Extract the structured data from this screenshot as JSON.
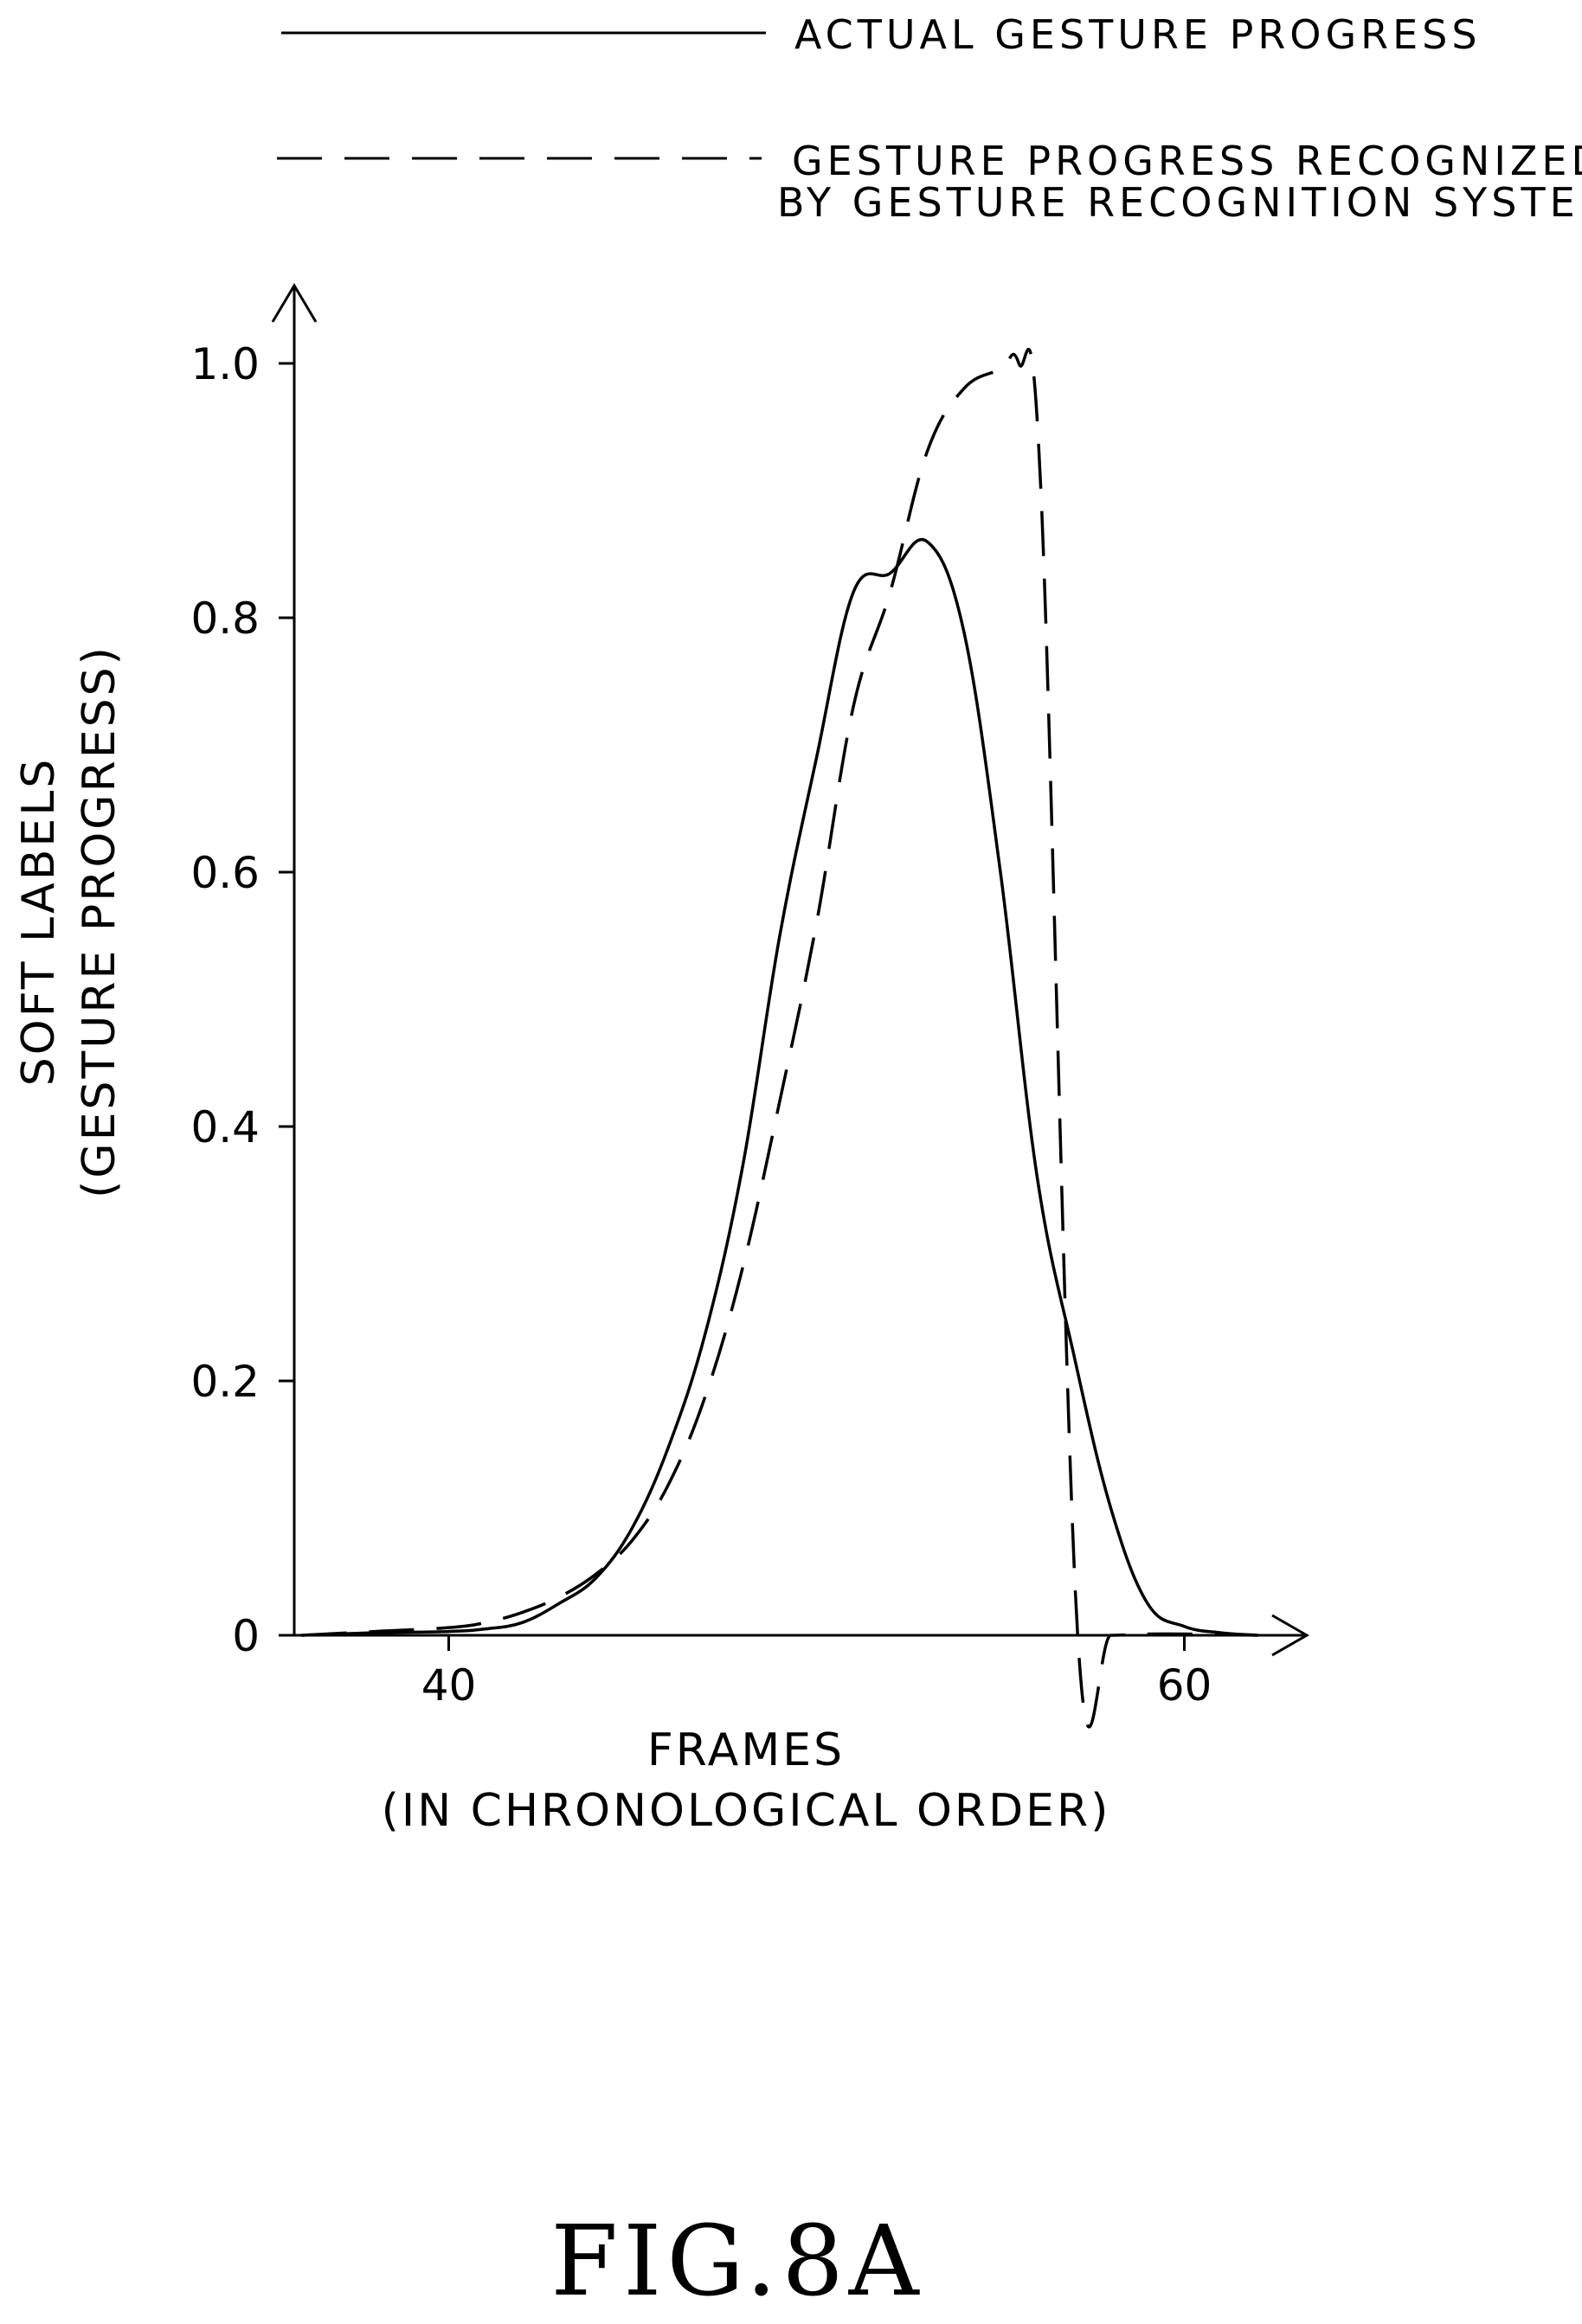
{
  "chart_data": {
    "type": "line",
    "caption": "FIG.8A",
    "xlabel": [
      "FRAMES",
      "(IN CHRONOLOGICAL ORDER)"
    ],
    "ylabel": [
      "SOFT LABELS",
      "(GESTURE PROGRESS)"
    ],
    "xlim": [
      35.8,
      63.5
    ],
    "ylim": [
      0,
      1.05
    ],
    "x_ticks": [
      {
        "value": 40,
        "label": "40"
      },
      {
        "value": 60,
        "label": "60"
      }
    ],
    "y_ticks": [
      {
        "value": 0,
        "label": "0"
      },
      {
        "value": 0.2,
        "label": "0.2"
      },
      {
        "value": 0.4,
        "label": "0.4"
      },
      {
        "value": 0.6,
        "label": "0.6"
      },
      {
        "value": 0.8,
        "label": "0.8"
      },
      {
        "value": 1.0,
        "label": "1.0"
      }
    ],
    "legend": {
      "placement": "top",
      "entries": [
        {
          "series": 0,
          "label_lines": [
            "ACTUAL GESTURE PROGRESS"
          ]
        },
        {
          "series": 1,
          "label_lines": [
            "GESTURE PROGRESS RECOGNIZED",
            "BY GESTURE RECOGNITION SYSTEM"
          ]
        }
      ]
    },
    "series": [
      {
        "name": "ACTUAL GESTURE PROGRESS",
        "style": "solid",
        "color": "#000000",
        "x": [
          36,
          38,
          40,
          41,
          42,
          43,
          44,
          45,
          46,
          47,
          48,
          49,
          50,
          51,
          52,
          53,
          54,
          55,
          56,
          57,
          58,
          59,
          60,
          61,
          62
        ],
        "y": [
          0,
          0.002,
          0.003,
          0.005,
          0.01,
          0.025,
          0.045,
          0.085,
          0.15,
          0.24,
          0.37,
          0.55,
          0.69,
          0.82,
          0.835,
          0.86,
          0.79,
          0.6,
          0.36,
          0.22,
          0.1,
          0.025,
          0.007,
          0.002,
          0
        ]
      },
      {
        "name": "GESTURE PROGRESS RECOGNIZED BY GESTURE RECOGNITION SYSTEM",
        "style": "dashed",
        "color": "#000000",
        "x": [
          36,
          38,
          40,
          41,
          42,
          43,
          44,
          45,
          46,
          47,
          48,
          49,
          50,
          51,
          52,
          53,
          54,
          55,
          55.5,
          56.1,
          57.1,
          58,
          59,
          60,
          62
        ],
        "y": [
          0,
          0.003,
          0.006,
          0.01,
          0.018,
          0.03,
          0.048,
          0.075,
          0.12,
          0.19,
          0.29,
          0.42,
          0.56,
          0.73,
          0.82,
          0.93,
          0.98,
          0.995,
          1.0,
          0.9,
          0,
          0,
          0.001,
          0.001,
          0
        ]
      }
    ]
  }
}
